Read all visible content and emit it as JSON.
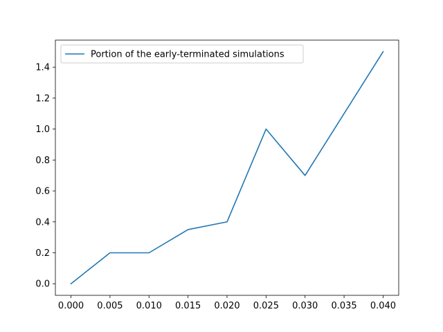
{
  "chart_data": {
    "type": "line",
    "title": "",
    "xlabel": "",
    "ylabel": "",
    "x": [
      0.0,
      0.005,
      0.01,
      0.015,
      0.02,
      0.025,
      0.03,
      0.035,
      0.04
    ],
    "series": [
      {
        "name": "Portion of the early-terminated simulations",
        "values": [
          0.0,
          0.2,
          0.2,
          0.35,
          0.4,
          1.0,
          0.7,
          1.1,
          1.5
        ],
        "color": "#1f77b4"
      }
    ],
    "xlim": [
      -0.002,
      0.042
    ],
    "ylim": [
      -0.075,
      1.575
    ],
    "x_ticks": [
      0.0,
      0.005,
      0.01,
      0.015,
      0.02,
      0.025,
      0.03,
      0.035,
      0.04
    ],
    "x_tick_labels": [
      "0.000",
      "0.005",
      "0.010",
      "0.015",
      "0.020",
      "0.025",
      "0.030",
      "0.035",
      "0.040"
    ],
    "y_ticks": [
      0.0,
      0.2,
      0.4,
      0.6,
      0.8,
      1.0,
      1.2,
      1.4
    ],
    "y_tick_labels": [
      "0.0",
      "0.2",
      "0.4",
      "0.6",
      "0.8",
      "1.0",
      "1.2",
      "1.4"
    ],
    "legend_position": "upper-left",
    "grid": false
  }
}
